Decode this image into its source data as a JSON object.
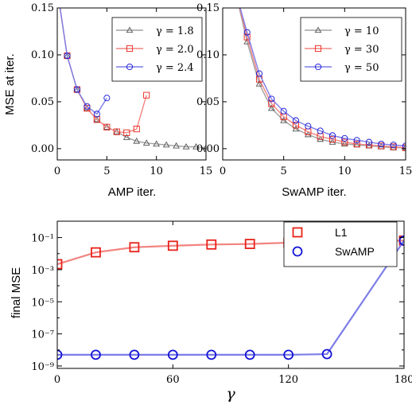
{
  "colors": {
    "black": "#000000",
    "gray": "#555555",
    "red": "#e8211a",
    "red_line": "#f28a86",
    "blue": "#1313d6",
    "blue_line": "#8e8ef2"
  },
  "chart_data": [
    {
      "type": "line",
      "xlabel": "AMP iter.",
      "ylabel": "MSE at iter.",
      "xlim": [
        0,
        15
      ],
      "ylim": [
        -0.012,
        0.15
      ],
      "xticks": [
        "0",
        "5",
        "10",
        "15"
      ],
      "yticks": [
        "0.00",
        "0.05",
        "0.10",
        "0.15"
      ],
      "legend_position": "upper-right",
      "series": [
        {
          "name": "γ = 1.8",
          "color": "#555555",
          "marker": "triangle",
          "x": [
            0,
            1,
            2,
            3,
            4,
            5,
            6,
            7,
            8,
            9,
            10,
            11,
            12,
            13,
            14,
            15
          ],
          "y": [
            0.17,
            0.099,
            0.063,
            0.043,
            0.031,
            0.023,
            0.018,
            0.012,
            0.008,
            0.006,
            0.005,
            0.004,
            0.003,
            0.002,
            0.002,
            0.001
          ]
        },
        {
          "name": "γ = 2.0",
          "color": "#e8211a",
          "marker": "square",
          "x": [
            0,
            1,
            2,
            3,
            4,
            5,
            6,
            7,
            8,
            9
          ],
          "y": [
            0.17,
            0.099,
            0.063,
            0.043,
            0.031,
            0.023,
            0.018,
            0.017,
            0.021,
            0.057
          ]
        },
        {
          "name": "γ = 2.4",
          "color": "#1313d6",
          "marker": "circle",
          "x": [
            0,
            1,
            2,
            3,
            4,
            5
          ],
          "y": [
            0.17,
            0.099,
            0.063,
            0.045,
            0.037,
            0.054
          ]
        }
      ]
    },
    {
      "type": "line",
      "xlabel": "SwAMP iter.",
      "ylabel": "",
      "xlim": [
        0,
        15
      ],
      "ylim": [
        -0.012,
        0.15
      ],
      "xticks": [
        "0",
        "5",
        "10",
        "15"
      ],
      "yticks": [
        "0.00",
        "0.05",
        "0.10",
        "0.15"
      ],
      "legend_position": "upper-right",
      "series": [
        {
          "name": "γ = 10",
          "color": "#555555",
          "marker": "triangle",
          "x": [
            1,
            2,
            3,
            4,
            5,
            6,
            7,
            8,
            9,
            10,
            11,
            12,
            13,
            14,
            15
          ],
          "y": [
            0.17,
            0.114,
            0.069,
            0.043,
            0.03,
            0.021,
            0.015,
            0.01,
            0.007,
            0.005,
            0.004,
            0.003,
            0.002,
            0.001,
            0.001
          ]
        },
        {
          "name": "γ = 30",
          "color": "#e8211a",
          "marker": "square",
          "x": [
            1,
            2,
            3,
            4,
            5,
            6,
            7,
            8,
            9,
            10,
            11,
            12,
            13,
            14,
            15
          ],
          "y": [
            0.17,
            0.119,
            0.074,
            0.048,
            0.034,
            0.025,
            0.018,
            0.013,
            0.01,
            0.007,
            0.005,
            0.004,
            0.003,
            0.002,
            0.001
          ]
        },
        {
          "name": "γ = 50",
          "color": "#1313d6",
          "marker": "circle",
          "x": [
            1,
            2,
            3,
            4,
            5,
            6,
            7,
            8,
            9,
            10,
            11,
            12,
            13,
            14,
            15
          ],
          "y": [
            0.17,
            0.124,
            0.08,
            0.053,
            0.04,
            0.03,
            0.024,
            0.019,
            0.014,
            0.011,
            0.009,
            0.007,
            0.005,
            0.004,
            0.003
          ]
        }
      ]
    },
    {
      "type": "line",
      "xlabel": "γ",
      "ylabel": "final MSE",
      "yscale": "log",
      "xlim": [
        0,
        180
      ],
      "ylim_log10": [
        -9.15,
        0.02
      ],
      "xticks": [
        "0",
        "60",
        "120",
        "180"
      ],
      "yticks": [
        "10⁻¹",
        "10⁻³",
        "10⁻⁵",
        "10⁻⁷",
        "10⁻⁹"
      ],
      "legend_position": "upper-right",
      "series": [
        {
          "name": "L1",
          "color": "#e8211a",
          "marker": "square",
          "x": [
            0,
            20,
            40,
            60,
            80,
            100,
            120,
            140,
            180
          ],
          "y": [
            0.0022,
            0.012,
            0.025,
            0.031,
            0.037,
            0.04,
            0.048,
            0.055,
            0.065
          ]
        },
        {
          "name": "SwAMP",
          "color": "#1313d6",
          "marker": "circle",
          "x": [
            0,
            20,
            40,
            60,
            80,
            100,
            120,
            140,
            180
          ],
          "y": [
            5e-09,
            5e-09,
            5e-09,
            5e-09,
            5e-09,
            5e-09,
            5e-09,
            5.5e-09,
            0.065
          ]
        }
      ]
    }
  ]
}
